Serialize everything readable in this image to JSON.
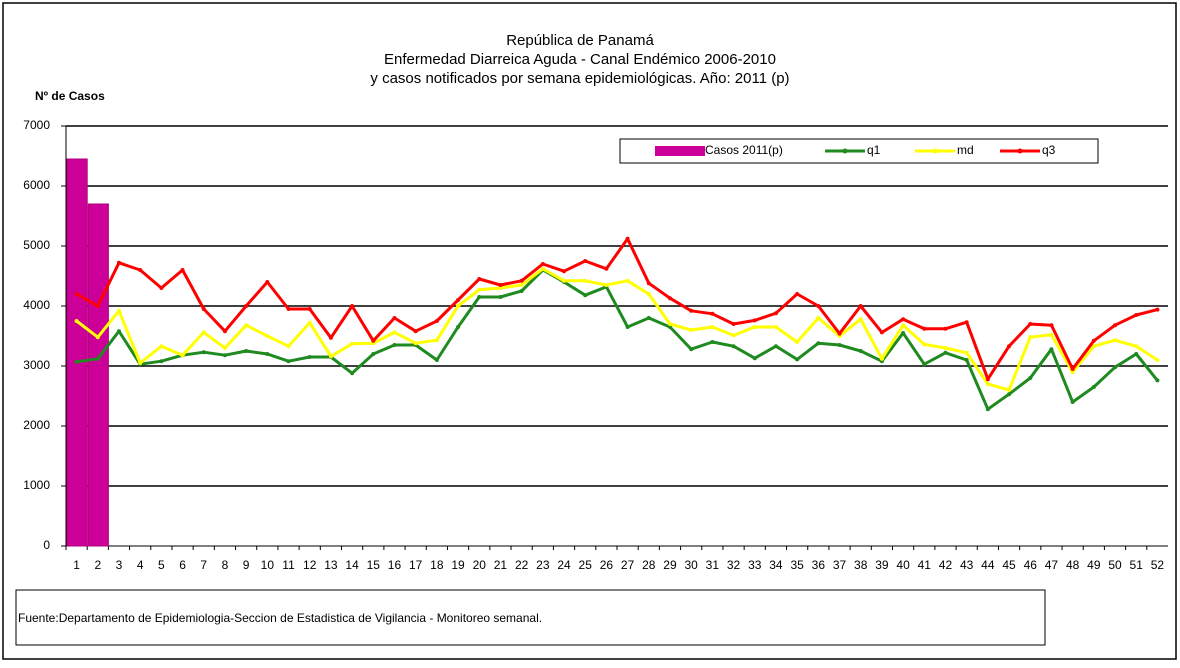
{
  "chart_data": {
    "type": "combo",
    "title": [
      "República de Panamá",
      "Enfermedad Diarreica Aguda - Canal Endémico 2006-2010",
      "y casos notificados por semana epidemiológicas.  Año: 2011 (p)"
    ],
    "y_label": "Nº de Casos",
    "footnote": "Fuente:Departamento de Epidemiologia-Seccion de Estadistica de Vigilancia - Monitoreo semanal.",
    "categories": [
      "1",
      "2",
      "3",
      "4",
      "5",
      "6",
      "7",
      "8",
      "9",
      "10",
      "11",
      "12",
      "13",
      "14",
      "15",
      "16",
      "17",
      "18",
      "19",
      "20",
      "21",
      "22",
      "23",
      "24",
      "25",
      "26",
      "27",
      "28",
      "29",
      "30",
      "31",
      "32",
      "33",
      "34",
      "35",
      "36",
      "37",
      "38",
      "39",
      "40",
      "41",
      "42",
      "43",
      "44",
      "45",
      "46",
      "47",
      "48",
      "49",
      "50",
      "51",
      "52"
    ],
    "ylim": [
      0,
      7000
    ],
    "yticks": [
      0,
      1000,
      2000,
      3000,
      4000,
      5000,
      6000,
      7000
    ],
    "grid": true,
    "series": [
      {
        "name": "Casos 2011(p)",
        "type": "bar",
        "color": "#cc0099",
        "values": [
          6450,
          5700,
          null,
          null,
          null,
          null,
          null,
          null,
          null,
          null,
          null,
          null,
          null,
          null,
          null,
          null,
          null,
          null,
          null,
          null,
          null,
          null,
          null,
          null,
          null,
          null,
          null,
          null,
          null,
          null,
          null,
          null,
          null,
          null,
          null,
          null,
          null,
          null,
          null,
          null,
          null,
          null,
          null,
          null,
          null,
          null,
          null,
          null,
          null,
          null,
          null,
          null
        ]
      },
      {
        "name": "q1",
        "type": "line",
        "color": "#1f8a1f",
        "values": [
          3070,
          3120,
          3580,
          3030,
          3080,
          3180,
          3230,
          3180,
          3250,
          3200,
          3080,
          3150,
          3150,
          2880,
          3200,
          3350,
          3350,
          3100,
          3650,
          4150,
          4150,
          4250,
          4600,
          4400,
          4180,
          4320,
          3650,
          3800,
          3650,
          3280,
          3400,
          3330,
          3130,
          3330,
          3110,
          3380,
          3350,
          3250,
          3080,
          3550,
          3030,
          3220,
          3100,
          2280,
          2530,
          2800,
          3280,
          2400,
          2650,
          2980,
          3200,
          2760
        ]
      },
      {
        "name": "md",
        "type": "line",
        "color": "#ffff00",
        "values": [
          3750,
          3480,
          3920,
          3050,
          3330,
          3180,
          3560,
          3300,
          3680,
          3500,
          3330,
          3720,
          3160,
          3370,
          3380,
          3560,
          3380,
          3430,
          4000,
          4270,
          4300,
          4350,
          4620,
          4420,
          4420,
          4350,
          4420,
          4200,
          3700,
          3600,
          3650,
          3510,
          3650,
          3650,
          3400,
          3800,
          3500,
          3780,
          3120,
          3680,
          3360,
          3300,
          3220,
          2700,
          2600,
          3480,
          3520,
          2900,
          3330,
          3430,
          3330,
          3100
        ]
      },
      {
        "name": "q3",
        "type": "line",
        "color": "#ff0000",
        "values": [
          4200,
          4000,
          4720,
          4600,
          4300,
          4600,
          3950,
          3580,
          4000,
          4400,
          3950,
          3950,
          3470,
          4000,
          3420,
          3800,
          3580,
          3750,
          4100,
          4450,
          4350,
          4420,
          4700,
          4580,
          4750,
          4620,
          5120,
          4380,
          4130,
          3920,
          3870,
          3700,
          3760,
          3880,
          4200,
          4000,
          3540,
          4000,
          3560,
          3780,
          3620,
          3620,
          3730,
          2780,
          3330,
          3700,
          3680,
          2950,
          3420,
          3680,
          3850,
          3940
        ]
      }
    ]
  }
}
